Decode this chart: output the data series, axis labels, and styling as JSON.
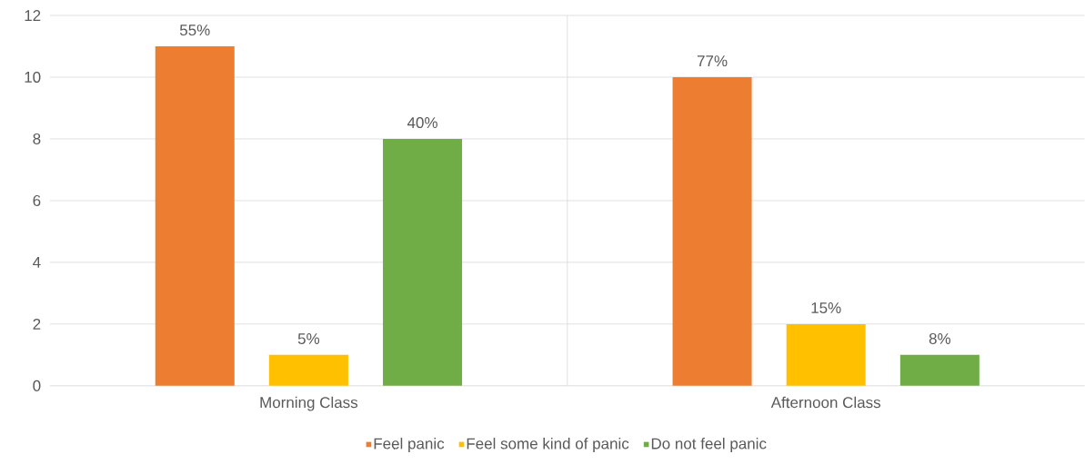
{
  "chart_data": {
    "type": "bar",
    "categories": [
      "Morning Class",
      "Afternoon Class"
    ],
    "series": [
      {
        "name": "Feel panic",
        "color": "#ed7d31",
        "values": [
          11,
          10
        ]
      },
      {
        "name": "Feel some kind of panic",
        "color": "#ffc000",
        "values": [
          1,
          2
        ]
      },
      {
        "name": "Do not feel panic",
        "color": "#70ad47",
        "values": [
          8,
          1
        ]
      }
    ],
    "annotations": [
      "55%",
      "5%",
      "40%",
      "77%",
      "15%",
      "8%"
    ],
    "ylim": [
      0,
      12
    ],
    "yticks": [
      0,
      2,
      4,
      6,
      8,
      10,
      12
    ],
    "grid": "y",
    "legend": "bottom"
  }
}
